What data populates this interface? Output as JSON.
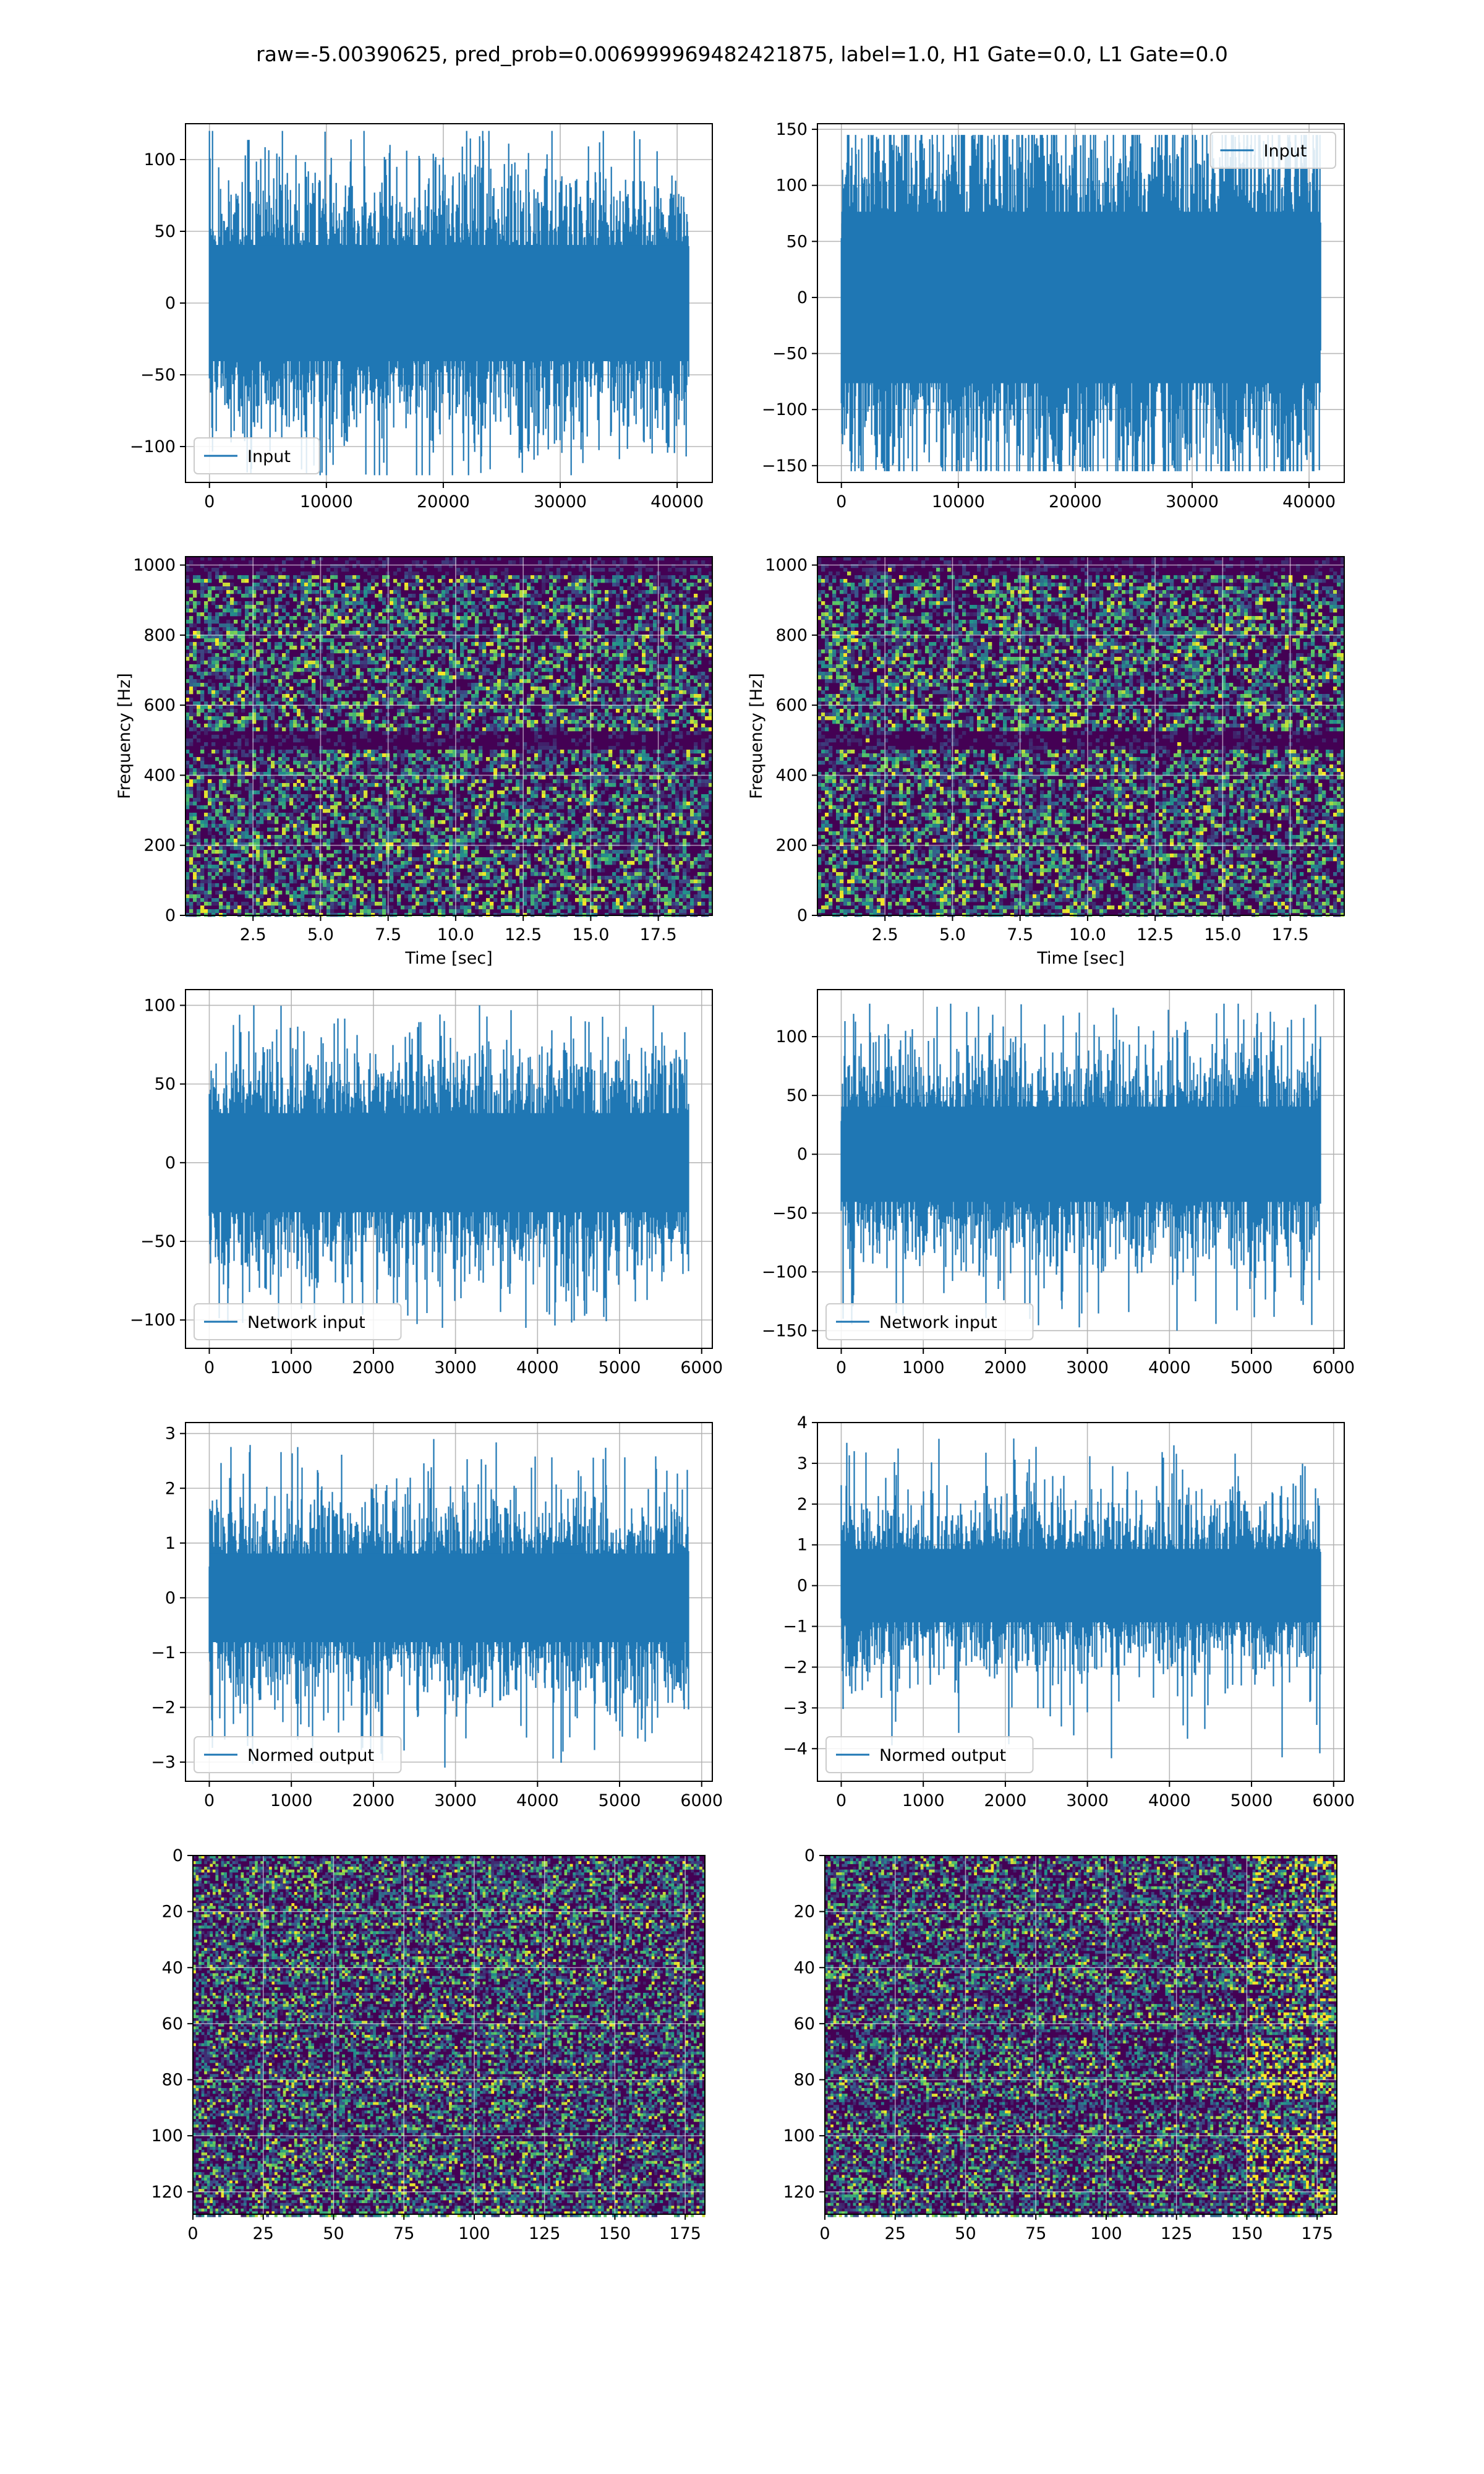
{
  "figure": {
    "title": "raw=-5.00390625, pred_prob=0.006999969482421875, label=1.0, H1 Gate=0.0, L1 Gate=0.0"
  },
  "colors": {
    "line": "#1f77b4",
    "grid": "#b0b0b0",
    "viridis_low": "#440154",
    "viridis_high": "#fde725"
  },
  "chart_data": [
    {
      "id": "h1-input",
      "type": "line",
      "x_range": [
        0,
        40960
      ],
      "xlim": [
        -2048,
        43008
      ],
      "ylim": [
        -125,
        125
      ],
      "xticks": [
        0,
        10000,
        20000,
        30000,
        40000
      ],
      "yticks": [
        -100,
        -50,
        0,
        50,
        100
      ],
      "envelope": {
        "core": 45,
        "peak_max": 120,
        "peak_min": -120
      },
      "series": [
        {
          "name": "Input"
        }
      ],
      "legend": "lower-left",
      "grid": true
    },
    {
      "id": "l1-input",
      "type": "line",
      "x_range": [
        0,
        40960
      ],
      "xlim": [
        -2048,
        43008
      ],
      "ylim": [
        -165,
        155
      ],
      "xticks": [
        0,
        10000,
        20000,
        30000,
        40000
      ],
      "yticks": [
        -150,
        -100,
        -50,
        0,
        50,
        100,
        150
      ],
      "envelope": {
        "core": 85,
        "peak_max": 145,
        "peak_min": -155
      },
      "series": [
        {
          "name": "Input"
        }
      ],
      "legend": "upper-right",
      "grid": true
    },
    {
      "id": "h1-spectrogram",
      "type": "heatmap",
      "xlim": [
        0.0,
        19.5
      ],
      "ylim": [
        0,
        1024
      ],
      "xticks": [
        2.5,
        5.0,
        7.5,
        10.0,
        12.5,
        15.0,
        17.5
      ],
      "yticks": [
        0,
        200,
        400,
        600,
        800,
        1000
      ],
      "xlabel": "Time [sec]",
      "ylabel": "Frequency [Hz]",
      "colormap": "viridis",
      "grid": true,
      "dark_bands_hz": [
        500,
        1000
      ]
    },
    {
      "id": "l1-spectrogram",
      "type": "heatmap",
      "xlim": [
        0.0,
        19.5
      ],
      "ylim": [
        0,
        1024
      ],
      "xticks": [
        2.5,
        5.0,
        7.5,
        10.0,
        12.5,
        15.0,
        17.5
      ],
      "yticks": [
        0,
        200,
        400,
        600,
        800,
        1000
      ],
      "xlabel": "Time [sec]",
      "ylabel": "Frequency [Hz]",
      "colormap": "viridis",
      "grid": true,
      "dark_bands_hz": [
        500,
        1000
      ]
    },
    {
      "id": "h1-network-input",
      "type": "line",
      "x_range": [
        0,
        5840
      ],
      "xlim": [
        -290,
        6130
      ],
      "ylim": [
        -118,
        110
      ],
      "xticks": [
        0,
        1000,
        2000,
        3000,
        4000,
        5000,
        6000
      ],
      "yticks": [
        -100,
        -50,
        0,
        50,
        100
      ],
      "envelope": {
        "core": 35,
        "peak_max": 100,
        "peak_min": -105
      },
      "series": [
        {
          "name": "Network input"
        }
      ],
      "legend": "lower-left",
      "grid": true
    },
    {
      "id": "l1-network-input",
      "type": "line",
      "x_range": [
        0,
        5840
      ],
      "xlim": [
        -290,
        6130
      ],
      "ylim": [
        -165,
        140
      ],
      "xticks": [
        0,
        1000,
        2000,
        3000,
        4000,
        5000,
        6000
      ],
      "yticks": [
        -150,
        -100,
        -50,
        0,
        50,
        100
      ],
      "envelope": {
        "core": 45,
        "peak_max": 128,
        "peak_min": -150
      },
      "series": [
        {
          "name": "Network input"
        }
      ],
      "legend": "lower-left",
      "grid": true
    },
    {
      "id": "h1-normed-output",
      "type": "line",
      "x_range": [
        0,
        5840
      ],
      "xlim": [
        -290,
        6130
      ],
      "ylim": [
        -3.35,
        3.2
      ],
      "xticks": [
        0,
        1000,
        2000,
        3000,
        4000,
        5000,
        6000
      ],
      "yticks": [
        -3,
        -2,
        -1,
        0,
        1,
        2,
        3
      ],
      "envelope": {
        "core": 0.9,
        "peak_max": 2.9,
        "peak_min": -3.1
      },
      "series": [
        {
          "name": "Normed output"
        }
      ],
      "legend": "lower-left",
      "grid": true
    },
    {
      "id": "l1-normed-output",
      "type": "line",
      "x_range": [
        0,
        5840
      ],
      "xlim": [
        -290,
        6130
      ],
      "ylim": [
        -4.8,
        4.0
      ],
      "xticks": [
        0,
        1000,
        2000,
        3000,
        4000,
        5000,
        6000
      ],
      "yticks": [
        -4,
        -3,
        -2,
        -1,
        0,
        1,
        2,
        3,
        4
      ],
      "envelope": {
        "core": 1.0,
        "peak_max": 3.7,
        "peak_min": -4.3
      },
      "series": [
        {
          "name": "Normed output"
        }
      ],
      "legend": "lower-left",
      "grid": true
    },
    {
      "id": "h1-matrix",
      "type": "heatmap",
      "xlim": [
        0,
        182
      ],
      "ylim": [
        128,
        0
      ],
      "xticks": [
        0,
        25,
        50,
        75,
        100,
        125,
        150,
        175
      ],
      "yticks": [
        0,
        20,
        40,
        60,
        80,
        100,
        120
      ],
      "colormap": "viridis",
      "grid": true
    },
    {
      "id": "l1-matrix",
      "type": "heatmap",
      "xlim": [
        0,
        182
      ],
      "ylim": [
        128,
        0
      ],
      "xticks": [
        0,
        25,
        50,
        75,
        100,
        125,
        150,
        175
      ],
      "yticks": [
        0,
        20,
        40,
        60,
        80,
        100,
        120
      ],
      "colormap": "viridis",
      "grid": true
    }
  ]
}
